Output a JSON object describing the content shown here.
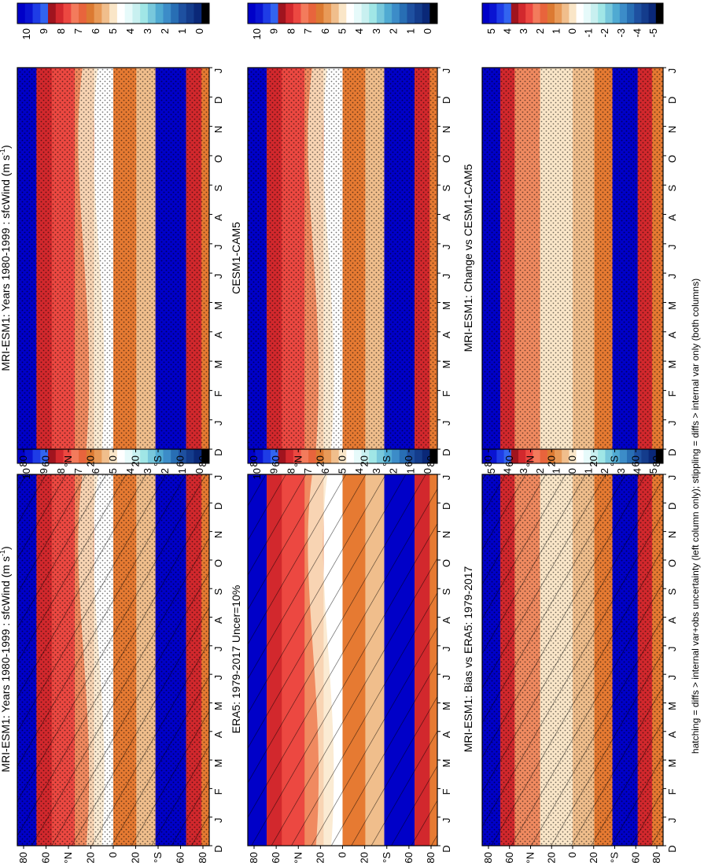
{
  "footnote": "hatching = diffs > internal var+obs uncertainty (left column only); stippling = diffs > internal var only (both columns)",
  "palette_sfcwind": [
    "#ffffff",
    "#0000c8",
    "#0a14d2",
    "#1e3ce6",
    "#3264f0",
    "#a0141e",
    "#d2282d",
    "#ec4841",
    "#f37b5c",
    "#e8643c",
    "#dc7a32",
    "#e89a58",
    "#f0be8c",
    "#fae6c8",
    "#ffffff",
    "#e6fafa",
    "#c8f0f0",
    "#a0e6e6",
    "#78c8dc",
    "#50aad2",
    "#3c8cc8",
    "#286eb4",
    "#1e50a0",
    "#143c8c",
    "#0a2878",
    "#000000"
  ],
  "palette_diff": [
    "#ffffff",
    "#0000c8",
    "#0a14d2",
    "#1e3ce6",
    "#3264f0",
    "#a0141e",
    "#d2282d",
    "#ec4841",
    "#f37b5c",
    "#e8643c",
    "#dc7a32",
    "#e89a58",
    "#f0be8c",
    "#fae6c8",
    "#ffffff",
    "#e6fafa",
    "#c8f0f0",
    "#a0e6e6",
    "#78c8dc",
    "#50aad2",
    "#3c8cc8",
    "#286eb4",
    "#1e50a0",
    "#143c8c",
    "#0a2878",
    "#000000"
  ],
  "chart_data": [
    {
      "type": "heatmap",
      "panel": "left-top",
      "title": "MRI-ESM1: Years 1980-1999 : sfcWind (m s",
      "title_sup": "-1",
      "title_tail": ")",
      "x_ticks": [
        "D",
        "J",
        "F",
        "M",
        "A",
        "M",
        "J",
        "J",
        "A",
        "S",
        "O",
        "N",
        "D",
        "J"
      ],
      "y_ticks": [
        "80",
        "60",
        "°N",
        "20",
        "0",
        "20",
        "°S",
        "60",
        "80"
      ],
      "colorbar_labels": [
        "10",
        "9",
        "8",
        "7",
        "6",
        "5",
        "4",
        "3",
        "2",
        "1",
        "0"
      ],
      "hatching": true,
      "stippling": true
    },
    {
      "type": "heatmap",
      "panel": "right-top",
      "title": "MRI-ESM1: Years 1980-1999 : sfcWind (m s",
      "title_sup": "-1",
      "title_tail": ")",
      "x_ticks": [
        "D",
        "J",
        "F",
        "M",
        "A",
        "M",
        "J",
        "J",
        "A",
        "S",
        "O",
        "N",
        "D",
        "J"
      ],
      "y_ticks": [
        "80",
        "60",
        "°N",
        "20",
        "0",
        "20",
        "°S",
        "60",
        "80"
      ],
      "colorbar_labels": [
        "10",
        "9",
        "8",
        "7",
        "6",
        "5",
        "4",
        "3",
        "2",
        "1",
        "0"
      ],
      "hatching": false,
      "stippling": true
    },
    {
      "type": "heatmap",
      "panel": "left-middle",
      "title": "ERA5: 1979-2017 Uncer=10%",
      "x_ticks": [
        "D",
        "J",
        "F",
        "M",
        "A",
        "M",
        "J",
        "J",
        "A",
        "S",
        "O",
        "N",
        "D",
        "J"
      ],
      "y_ticks": [
        "80",
        "60",
        "°N",
        "20",
        "0",
        "20",
        "°S",
        "60",
        "80"
      ],
      "colorbar_labels": [
        "10",
        "9",
        "8",
        "7",
        "6",
        "5",
        "4",
        "3",
        "2",
        "1",
        "0"
      ],
      "hatching": true,
      "stippling": false
    },
    {
      "type": "heatmap",
      "panel": "right-middle",
      "title": "CESM1-CAM5",
      "x_ticks": [
        "D",
        "J",
        "F",
        "M",
        "A",
        "M",
        "J",
        "J",
        "A",
        "S",
        "O",
        "N",
        "D",
        "J"
      ],
      "y_ticks": [
        "80",
        "60",
        "°N",
        "20",
        "0",
        "20",
        "°S",
        "60",
        "80"
      ],
      "colorbar_labels": [
        "10",
        "9",
        "8",
        "7",
        "6",
        "5",
        "4",
        "3",
        "2",
        "1",
        "0"
      ],
      "hatching": false,
      "stippling": true
    },
    {
      "type": "heatmap",
      "panel": "left-bottom",
      "title": "MRI-ESM1: Bias vs ERA5: 1979-2017",
      "x_ticks": [
        "D",
        "J",
        "F",
        "M",
        "A",
        "M",
        "J",
        "J",
        "A",
        "S",
        "O",
        "N",
        "D",
        "J"
      ],
      "y_ticks": [
        "80",
        "60",
        "°N",
        "20",
        "0",
        "20",
        "°S",
        "60",
        "80"
      ],
      "colorbar_labels": [
        "5",
        "4",
        "3",
        "2",
        "1",
        "0",
        "-1",
        "-2",
        "-3",
        "-4",
        "-5"
      ],
      "hatching": true,
      "stippling": true
    },
    {
      "type": "heatmap",
      "panel": "right-bottom",
      "title": "MRI-ESM1: Change vs CESM1-CAM5",
      "x_ticks": [
        "D",
        "J",
        "F",
        "M",
        "A",
        "M",
        "J",
        "J",
        "A",
        "S",
        "O",
        "N",
        "D",
        "J"
      ],
      "y_ticks": [
        "80",
        "60",
        "°N",
        "20",
        "0",
        "20",
        "°S",
        "60",
        "80"
      ],
      "colorbar_labels": [
        "5",
        "4",
        "3",
        "2",
        "1",
        "0",
        "-1",
        "-2",
        "-3",
        "-4",
        "-5"
      ],
      "hatching": false,
      "stippling": true
    }
  ]
}
